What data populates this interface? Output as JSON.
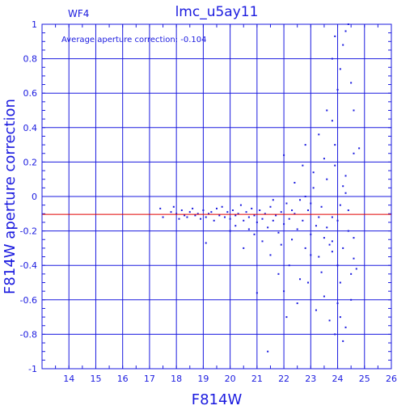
{
  "chart_data": {
    "type": "scatter",
    "title": "lmc_u5ay11",
    "panel_label": "WF4",
    "annotation": "Average aperture correction: -0.104",
    "xlabel": "F814W",
    "ylabel": "F814W aperture correction",
    "xlim": [
      13,
      26
    ],
    "ylim": [
      -1,
      1
    ],
    "x_ticks": [
      14,
      15,
      16,
      17,
      18,
      19,
      20,
      21,
      22,
      23,
      24,
      25,
      26
    ],
    "y_ticks": [
      -1,
      -0.8,
      -0.6,
      -0.4,
      -0.2,
      0,
      0.2,
      0.4,
      0.6,
      0.8,
      1
    ],
    "grid": true,
    "reference_line": {
      "y": -0.104,
      "color": "#e00000"
    },
    "colors": {
      "axes": "#1a1adf",
      "points": "#1a1adf"
    },
    "series": [
      {
        "values": [
          [
            17.4,
            -0.07
          ],
          [
            17.5,
            -0.12
          ],
          [
            17.8,
            -0.09
          ],
          [
            17.9,
            -0.06
          ],
          [
            18.0,
            -0.1
          ],
          [
            18.1,
            -0.13
          ],
          [
            18.2,
            -0.08
          ],
          [
            18.3,
            -0.11
          ],
          [
            18.4,
            -0.12
          ],
          [
            18.5,
            -0.09
          ],
          [
            18.6,
            -0.07
          ],
          [
            18.7,
            -0.11
          ],
          [
            18.8,
            -0.1
          ],
          [
            18.9,
            -0.13
          ],
          [
            19.0,
            -0.08
          ],
          [
            19.1,
            -0.12
          ],
          [
            19.1,
            -0.27
          ],
          [
            19.2,
            -0.1
          ],
          [
            19.3,
            -0.09
          ],
          [
            19.4,
            -0.14
          ],
          [
            19.5,
            -0.07
          ],
          [
            19.6,
            -0.11
          ],
          [
            19.7,
            -0.06
          ],
          [
            19.8,
            -0.12
          ],
          [
            19.9,
            -0.09
          ],
          [
            20.0,
            -0.13
          ],
          [
            20.1,
            -0.08
          ],
          [
            20.2,
            -0.11
          ],
          [
            20.2,
            -0.17
          ],
          [
            20.3,
            -0.1
          ],
          [
            20.4,
            -0.05
          ],
          [
            20.5,
            -0.14
          ],
          [
            20.6,
            -0.09
          ],
          [
            20.7,
            -0.12
          ],
          [
            20.7,
            -0.19
          ],
          [
            20.8,
            -0.07
          ],
          [
            20.9,
            -0.11
          ],
          [
            21.0,
            -0.15
          ],
          [
            21.1,
            -0.08
          ],
          [
            21.2,
            -0.13
          ],
          [
            21.3,
            -0.1
          ],
          [
            21.4,
            -0.18
          ],
          [
            21.5,
            -0.06
          ],
          [
            21.6,
            -0.14
          ],
          [
            21.7,
            -0.11
          ],
          [
            21.8,
            -0.21
          ],
          [
            21.9,
            -0.09
          ],
          [
            22.0,
            -0.16
          ],
          [
            22.1,
            -0.04
          ],
          [
            22.2,
            -0.13
          ],
          [
            22.3,
            -0.25
          ],
          [
            22.4,
            -0.1
          ],
          [
            22.5,
            -0.19
          ],
          [
            22.6,
            -0.02
          ],
          [
            22.7,
            -0.14
          ],
          [
            22.8,
            -0.3
          ],
          [
            22.9,
            -0.08
          ],
          [
            23.0,
            -0.22
          ],
          [
            23.1,
            0.05
          ],
          [
            23.2,
            -0.17
          ],
          [
            23.3,
            -0.35
          ],
          [
            23.4,
            -0.06
          ],
          [
            23.5,
            -0.24
          ],
          [
            23.6,
            0.1
          ],
          [
            23.7,
            -0.28
          ],
          [
            23.8,
            -0.12
          ],
          [
            23.9,
            0.18
          ],
          [
            24.0,
            -0.4
          ],
          [
            24.1,
            -0.05
          ],
          [
            24.2,
            -0.3
          ],
          [
            24.3,
            0.02
          ],
          [
            24.4,
            -0.2
          ],
          [
            24.5,
            -0.45
          ],
          [
            24.6,
            0.25
          ],
          [
            21.0,
            -0.56
          ],
          [
            21.2,
            -0.26
          ],
          [
            21.5,
            -0.34
          ],
          [
            21.8,
            -0.45
          ],
          [
            22.0,
            -0.55
          ],
          [
            22.1,
            -0.7
          ],
          [
            22.5,
            -0.62
          ],
          [
            22.9,
            -0.5
          ],
          [
            23.2,
            -0.66
          ],
          [
            23.5,
            -0.58
          ],
          [
            23.7,
            -0.72
          ],
          [
            24.0,
            -0.62
          ],
          [
            24.3,
            -0.76
          ],
          [
            24.5,
            -0.6
          ],
          [
            24.2,
            -0.84
          ],
          [
            21.4,
            -0.9
          ],
          [
            22.2,
            -0.4
          ],
          [
            22.6,
            -0.48
          ],
          [
            23.0,
            -0.34
          ],
          [
            23.4,
            -0.44
          ],
          [
            23.8,
            -0.32
          ],
          [
            24.1,
            -0.5
          ],
          [
            24.6,
            -0.36
          ],
          [
            22.0,
            0.24
          ],
          [
            22.4,
            0.08
          ],
          [
            22.8,
            0.3
          ],
          [
            23.1,
            0.14
          ],
          [
            23.3,
            0.36
          ],
          [
            23.6,
            0.5
          ],
          [
            23.8,
            0.44
          ],
          [
            23.9,
            0.3
          ],
          [
            24.0,
            0.62
          ],
          [
            24.1,
            0.74
          ],
          [
            24.2,
            0.88
          ],
          [
            23.8,
            0.8
          ],
          [
            24.5,
            0.66
          ],
          [
            23.9,
            0.93
          ],
          [
            24.3,
            0.96
          ],
          [
            24.4,
            1.0
          ],
          [
            24.8,
            0.28
          ],
          [
            24.6,
            0.5
          ],
          [
            24.3,
            0.12
          ],
          [
            23.5,
            0.22
          ],
          [
            22.7,
            0.18
          ],
          [
            22.3,
            -0.08
          ],
          [
            21.6,
            -0.02
          ],
          [
            21.9,
            -0.28
          ],
          [
            20.9,
            -0.22
          ],
          [
            20.5,
            -0.3
          ],
          [
            20.0,
            -0.2
          ],
          [
            22.8,
            0.0
          ],
          [
            23.0,
            -0.04
          ],
          [
            23.3,
            -0.12
          ],
          [
            23.6,
            -0.18
          ],
          [
            23.8,
            -0.26
          ],
          [
            24.0,
            -0.14
          ],
          [
            24.2,
            0.06
          ],
          [
            24.4,
            -0.08
          ],
          [
            24.6,
            -0.24
          ],
          [
            24.7,
            -0.42
          ],
          [
            24.1,
            -0.7
          ],
          [
            23.9,
            -0.8
          ]
        ]
      }
    ]
  }
}
